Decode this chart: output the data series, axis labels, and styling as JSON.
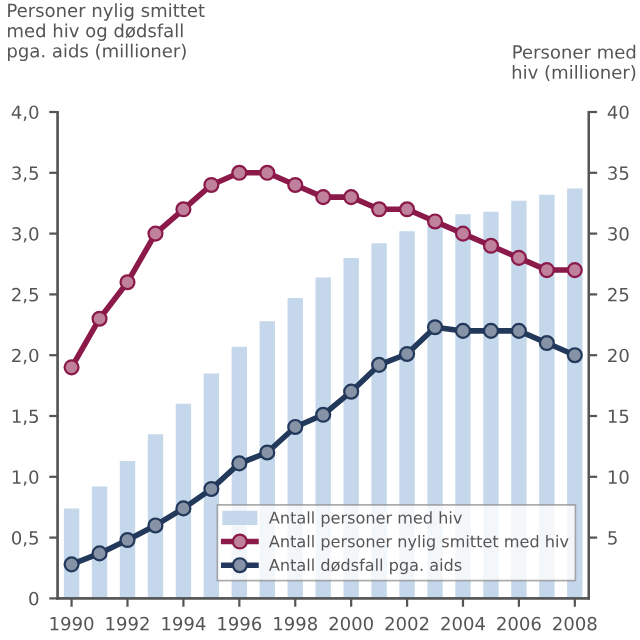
{
  "chart_data": {
    "type": "line",
    "ylabel": "Personer nylig smittet\nmed hiv og dødsfall\npga. aids (millioner)",
    "y2label": "Personer med\nhiv (millioner)",
    "x": [
      1990,
      1991,
      1992,
      1993,
      1994,
      1995,
      1996,
      1997,
      1998,
      1999,
      2000,
      2001,
      2002,
      2003,
      2004,
      2005,
      2006,
      2007,
      2008
    ],
    "series": [
      {
        "name": "Antall personer med hiv",
        "type": "bar",
        "axis": "y2",
        "color": "#c5d7ea",
        "values": [
          7.4,
          9.2,
          11.3,
          13.5,
          16,
          18.5,
          20.7,
          22.8,
          24.7,
          26.4,
          28,
          29.2,
          30.2,
          30.6,
          31.6,
          31.8,
          32.7,
          33.2,
          33.7
        ]
      },
      {
        "name": "Antall personer nylig smittet med hiv",
        "color": "#8b1a4a",
        "values": [
          1.9,
          2.3,
          2.6,
          3.0,
          3.2,
          3.4,
          3.5,
          3.5,
          3.4,
          3.3,
          3.3,
          3.2,
          3.2,
          3.1,
          3.0,
          2.9,
          2.8,
          2.7,
          2.7
        ]
      },
      {
        "name": "Antall dødsfall pga. aids",
        "color": "#23395b",
        "values": [
          0.28,
          0.37,
          0.48,
          0.6,
          0.74,
          0.9,
          1.11,
          1.2,
          1.41,
          1.51,
          1.7,
          1.92,
          2.01,
          2.23,
          2.2,
          2.2,
          2.2,
          2.1,
          2.0
        ]
      }
    ],
    "xlim": [
      1989.5,
      2008.5
    ],
    "xticks": [
      1990,
      1992,
      1994,
      1996,
      1998,
      2000,
      2002,
      2004,
      2006,
      2008
    ],
    "ylim": [
      0,
      4
    ],
    "yticks": [
      0,
      {
        "value": 0.5,
        "label": "0,5"
      },
      {
        "value": 1,
        "label": "1,0"
      },
      {
        "value": 1.5,
        "label": "1,5"
      },
      {
        "value": 2,
        "label": "2,0"
      },
      {
        "value": 2.5,
        "label": "2,5"
      },
      {
        "value": 3,
        "label": "3,0"
      },
      {
        "value": 3.5,
        "label": "3,5"
      },
      {
        "value": 4,
        "label": "4,0"
      }
    ],
    "y2lim": [
      0,
      40
    ],
    "y2ticks": [
      5,
      10,
      15,
      20,
      25,
      30,
      35,
      40
    ],
    "marker": "circle",
    "line_style": "solid",
    "grid": false,
    "legend": "bottom right"
  }
}
